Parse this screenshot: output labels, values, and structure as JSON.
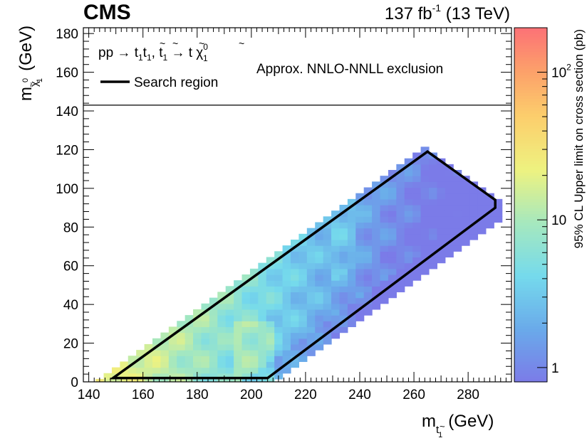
{
  "header": {
    "experiment": "CMS",
    "lumi_value": "137 fb",
    "lumi_exp": "-1",
    "energy": " (13 TeV)"
  },
  "legend": {
    "process_prefix": "pp → ",
    "process_t1": "t",
    "process_t2": "t",
    "process_mid": ", ",
    "process_t3": "t",
    "process_decay": " → t ",
    "process_chi": "χ",
    "search_region": "Search region",
    "exclusion": "Approx. NNLO-NNLL exclusion"
  },
  "axes": {
    "x_label_m": "m",
    "x_label_sub": "t",
    "x_label_unit": "(GeV)",
    "y_label_m": "m",
    "y_label_sub": "χ",
    "y_label_unit": "(GeV)",
    "z_label": "95% CL Upper limit on cross section (pb)"
  },
  "colors": {
    "heatmap_colormap": "kBird-like rainbow",
    "contour": "#000000"
  },
  "chart_data": {
    "type": "heatmap",
    "xlim": [
      138,
      296
    ],
    "ylim": [
      0,
      183
    ],
    "zlim": [
      0.8,
      200
    ],
    "z_scale": "log",
    "x_ticks": [
      140,
      160,
      180,
      200,
      220,
      240,
      260,
      280
    ],
    "y_ticks": [
      0,
      20,
      40,
      60,
      80,
      100,
      120,
      140,
      160,
      180
    ],
    "z_tick_labels": [
      {
        "value": 1,
        "label": "1"
      },
      {
        "value": 10,
        "label": "10"
      },
      {
        "value": 100,
        "label": "10",
        "exp": "2"
      }
    ],
    "exclusion_line_y": 143,
    "search_region_contour": [
      [
        149,
        2
      ],
      [
        265,
        119
      ],
      [
        290,
        94
      ],
      [
        290,
        90
      ],
      [
        206,
        2
      ]
    ],
    "cell_size": [
      3,
      3
    ],
    "grid": false,
    "legend_position": "top-left"
  }
}
